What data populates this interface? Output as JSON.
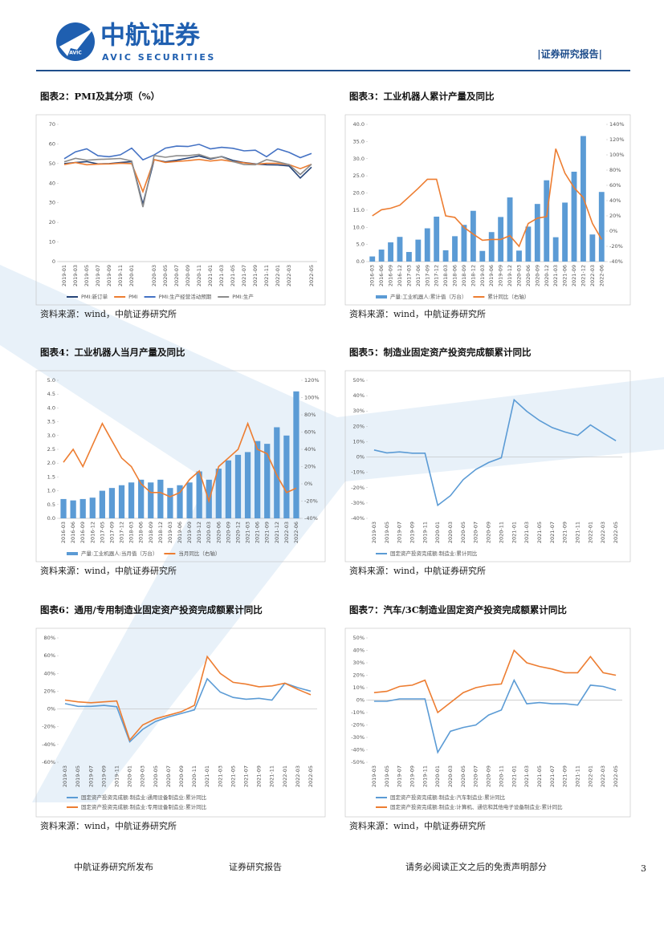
{
  "header": {
    "logo_mark": "AVIC",
    "brand": "中航证券",
    "brand_en": "AVIC SECURITIES",
    "report_type": "|证券研究报告|"
  },
  "chart_data": [
    {
      "type": "line",
      "title": "图表2：PMI及其分项（%）",
      "source": "资料来源：wind，中航证券研究所",
      "categories": [
        "2019-01",
        "2019-03",
        "2019-05",
        "2019-07",
        "2019-09",
        "2019-11",
        "2020-01",
        null,
        "2020-03",
        "2020-05",
        "2020-07",
        "2020-09",
        "2020-11",
        "2021-01",
        "2021-03",
        "2021-05",
        "2021-07",
        "2021-09",
        "2021-11",
        "2022-01",
        "2022-03",
        null,
        "2022-05"
      ],
      "ylim": [
        0,
        70
      ],
      "yticks": [
        0,
        10,
        20,
        30,
        40,
        50,
        60,
        70
      ],
      "series": [
        {
          "name": "PMI:新订单",
          "color": "#264478",
          "values": [
            50.0,
            50.5,
            51.0,
            49.8,
            50.0,
            50.5,
            51.0,
            29.3,
            52.0,
            50.9,
            51.7,
            52.8,
            53.9,
            52.3,
            53.6,
            51.6,
            50.5,
            49.8,
            49.4,
            49.3,
            48.8,
            42.6,
            48.2
          ]
        },
        {
          "name": "PMI",
          "color": "#ed7d31",
          "values": [
            49.5,
            50.5,
            49.4,
            49.7,
            49.8,
            50.2,
            50.0,
            35.7,
            52.0,
            50.6,
            51.1,
            51.5,
            52.1,
            51.3,
            51.9,
            51.0,
            50.4,
            49.6,
            50.1,
            50.1,
            49.5,
            47.4,
            49.6
          ]
        },
        {
          "name": "PMI:生产经营活动预期",
          "color": "#4472c4",
          "values": [
            52.5,
            56,
            57.5,
            54,
            53.5,
            54.5,
            57.9,
            51.9,
            54.4,
            57.9,
            58.9,
            58.7,
            59.8,
            57.5,
            58.3,
            57.8,
            56.5,
            56.8,
            53.5,
            57.5,
            55.7,
            53.0,
            55.2
          ]
        },
        {
          "name": "PMI:生产",
          "color": "#8c8c8c",
          "values": [
            50.9,
            52.7,
            51.7,
            52.1,
            52.3,
            52.6,
            51.3,
            27.8,
            54.1,
            53.2,
            54.0,
            54.0,
            54.7,
            52.7,
            53.5,
            51.0,
            49.5,
            49.4,
            52.0,
            50.9,
            49.5,
            44.4,
            49.7
          ]
        }
      ]
    },
    {
      "type": "combo",
      "title": "图表3：工业机器人累计产量及同比",
      "source": "资料来源：wind，中航证券研究所",
      "categories": [
        "2016-03",
        "2016-06",
        "2016-09",
        "2016-12",
        "2017-03",
        "2017-06",
        "2017-09",
        "2017-12",
        "2018-03",
        "2018-06",
        "2018-09",
        "2018-12",
        "2019-03",
        "2019-06",
        "2019-09",
        "2019-12",
        "2020-03",
        "2020-06",
        "2020-09",
        "2020-12",
        "2021-03",
        "2021-06",
        "2021-09",
        "2021-12",
        "2022-03",
        "2022-06"
      ],
      "ylim": [
        0,
        40
      ],
      "yticks": [
        {
          "value": 0,
          "label": "0.0"
        },
        {
          "value": 5,
          "label": "5.0"
        },
        {
          "value": 10,
          "label": "10.0"
        },
        {
          "value": 15,
          "label": "15.0"
        },
        {
          "value": 20,
          "label": "20.0"
        },
        {
          "value": 25,
          "label": "25.0"
        },
        {
          "value": 30,
          "label": "30.0"
        },
        {
          "value": 35,
          "label": "35.0"
        },
        {
          "value": 40,
          "label": "40.0"
        }
      ],
      "y2lim": [
        -40,
        140
      ],
      "y2ticks": [
        {
          "value": -40,
          "label": "-40%"
        },
        {
          "value": -20,
          "label": "-20%"
        },
        {
          "value": 0,
          "label": "0%"
        },
        {
          "value": 20,
          "label": "20%"
        },
        {
          "value": 40,
          "label": "40%"
        },
        {
          "value": 60,
          "label": "60%"
        },
        {
          "value": 80,
          "label": "80%"
        },
        {
          "value": 100,
          "label": "100%"
        },
        {
          "value": 120,
          "label": "120%"
        },
        {
          "value": 140,
          "label": "140%"
        }
      ],
      "series": [
        {
          "name": "产量:工业机器人:累计值（万台）",
          "type": "bar",
          "color": "#5b9bd5",
          "values": [
            1.5,
            3.5,
            5.6,
            7.2,
            2.8,
            6.4,
            9.7,
            13.1,
            3.3,
            7.4,
            10.7,
            14.8,
            3.1,
            8.6,
            13.0,
            18.7,
            3.2,
            10.2,
            16.8,
            23.7,
            7.1,
            17.2,
            26.2,
            36.6,
            7.9,
            20.3
          ]
        },
        {
          "name": "累计同比（右轴）",
          "type": "line",
          "axis": "y2",
          "color": "#ed7d31",
          "values": [
            20,
            28,
            30,
            34,
            45,
            56,
            68,
            68,
            20,
            18,
            5,
            -4,
            -12,
            -11,
            -11,
            -6,
            -20,
            10,
            17,
            19,
            108,
            76,
            57,
            44,
            10,
            -11
          ]
        }
      ]
    },
    {
      "type": "combo",
      "title": "图表4：工业机器人当月产量及同比",
      "source": "资料来源：wind，中航证券研究所",
      "categories": [
        "2016-03",
        "2016-06",
        "2016-09",
        "2016-12",
        "2017-05",
        "2017-09",
        "2017-12",
        "2018-03",
        "2018-06",
        "2018-09",
        "2018-12",
        "2019-03",
        "2019-06",
        "2019-09",
        "2019-12",
        "2020-03",
        "2020-06",
        "2020-09",
        "2020-12",
        "2021-03",
        "2021-06",
        "2021-09",
        "2021-12",
        "2022-03",
        "2022-06"
      ],
      "ylim": [
        0,
        5
      ],
      "yticks": [
        {
          "value": 0,
          "label": "0.0"
        },
        {
          "value": 0.5,
          "label": "0.5"
        },
        {
          "value": 1,
          "label": "1.0"
        },
        {
          "value": 1.5,
          "label": "1.5"
        },
        {
          "value": 2,
          "label": "2.0"
        },
        {
          "value": 2.5,
          "label": "2.5"
        },
        {
          "value": 3,
          "label": "3.0"
        },
        {
          "value": 3.5,
          "label": "3.5"
        },
        {
          "value": 4,
          "label": "4.0"
        },
        {
          "value": 4.5,
          "label": "4.5"
        },
        {
          "value": 5,
          "label": "5.0"
        }
      ],
      "y2lim": [
        -40,
        120
      ],
      "y2ticks": [
        {
          "value": -40,
          "label": "-40%"
        },
        {
          "value": -20,
          "label": "-20%"
        },
        {
          "value": 0,
          "label": "0%"
        },
        {
          "value": 20,
          "label": "20%"
        },
        {
          "value": 40,
          "label": "40%"
        },
        {
          "value": 60,
          "label": "60%"
        },
        {
          "value": 80,
          "label": "80%"
        },
        {
          "value": 100,
          "label": "100%"
        },
        {
          "value": 120,
          "label": "120%"
        }
      ],
      "series": [
        {
          "name": "产量:工业机器人:当月值（万台）",
          "type": "bar",
          "color": "#5b9bd5",
          "values": [
            0.7,
            0.65,
            0.7,
            0.75,
            1.0,
            1.1,
            1.2,
            1.3,
            1.4,
            1.3,
            1.4,
            1.1,
            1.2,
            1.3,
            1.7,
            1.4,
            1.8,
            2.1,
            2.3,
            2.4,
            2.8,
            2.7,
            3.3,
            3.0,
            4.6
          ]
        },
        {
          "name": "当月同比（右轴）",
          "type": "line",
          "axis": "y2",
          "color": "#ed7d31",
          "values": [
            25,
            40,
            20,
            45,
            70,
            50,
            30,
            20,
            0,
            -10,
            -10,
            -15,
            -10,
            5,
            15,
            -20,
            20,
            30,
            40,
            70,
            40,
            35,
            10,
            -10,
            -5
          ]
        }
      ]
    },
    {
      "type": "line",
      "title": "图表5：制造业固定资产投资完成额累计同比",
      "source": "资料来源：wind，中航证券研究所",
      "categories": [
        "2019-03",
        "2019-05",
        "2019-07",
        "2019-09",
        "2019-11",
        "2020-01",
        "2020-03",
        "2020-05",
        "2020-07",
        "2020-09",
        "2020-11",
        "2021-01",
        "2021-03",
        "2021-05",
        "2021-07",
        "2021-09",
        "2021-11",
        "2022-01",
        "2022-03",
        "2022-05"
      ],
      "ylim": [
        -40,
        50
      ],
      "yticks": [
        {
          "value": -40,
          "label": "-40%"
        },
        {
          "value": -30,
          "label": "-30%"
        },
        {
          "value": -20,
          "label": "-20%"
        },
        {
          "value": -10,
          "label": "-10%"
        },
        {
          "value": 0,
          "label": "0%"
        },
        {
          "value": 10,
          "label": "10%"
        },
        {
          "value": 20,
          "label": "20%"
        },
        {
          "value": 30,
          "label": "30%"
        },
        {
          "value": 40,
          "label": "40%"
        },
        {
          "value": 50,
          "label": "50%"
        }
      ],
      "series": [
        {
          "name": "固定资产投资完成额:制造业:累计同比",
          "color": "#5b9bd5",
          "values": [
            4.6,
            2.7,
            3.3,
            2.5,
            2.5,
            -31.5,
            -25.2,
            -14.8,
            -8.1,
            -3.6,
            -0.5,
            37.3,
            29.8,
            23.8,
            19.2,
            16.3,
            14.1,
            20.9,
            15.6,
            10.6
          ]
        }
      ]
    },
    {
      "type": "line",
      "title": "图表6：通用/专用制造业固定资产投资完成额累计同比",
      "source": "资料来源：wind，中航证券研究所",
      "categories": [
        "2019-03",
        "2019-05",
        "2019-07",
        "2019-09",
        "2019-11",
        "2020-01",
        "2020-03",
        "2020-05",
        "2020-07",
        "2020-09",
        "2020-11",
        "2021-01",
        "2021-03",
        "2021-05",
        "2021-07",
        "2021-09",
        "2021-11",
        "2022-01",
        "2022-03",
        "2022-05"
      ],
      "ylim": [
        -60,
        80
      ],
      "yticks": [
        {
          "value": -60,
          "label": "-60%"
        },
        {
          "value": -40,
          "label": "-40%"
        },
        {
          "value": -20,
          "label": "-20%"
        },
        {
          "value": 0,
          "label": "0%"
        },
        {
          "value": 20,
          "label": "20%"
        },
        {
          "value": 40,
          "label": "40%"
        },
        {
          "value": 60,
          "label": "60%"
        },
        {
          "value": 80,
          "label": "80%"
        }
      ],
      "series": [
        {
          "name": "固定资产投资完成额:制造业:通用设备制造业:累计同比",
          "color": "#5b9bd5",
          "values": [
            6,
            3,
            3,
            4,
            2.5,
            -37,
            -23,
            -14,
            -9,
            -5,
            -1,
            34,
            19,
            13,
            11,
            12,
            10,
            29,
            24,
            20
          ]
        },
        {
          "name": "固定资产投资完成额:制造业:专用设备制造业:累计同比",
          "color": "#ed7d31",
          "values": [
            10,
            8,
            7,
            8,
            9,
            -35,
            -18,
            -11,
            -7,
            -3,
            4,
            59,
            40,
            30,
            28,
            25,
            26,
            29,
            22,
            16
          ]
        }
      ]
    },
    {
      "type": "line",
      "title": "图表7：汽车/3C制造业固定资产投资完成额累计同比",
      "source": "资料来源：wind，中航证券研究所",
      "categories": [
        "2019-03",
        "2019-05",
        "2019-07",
        "2019-09",
        "2019-11",
        "2020-01",
        "2020-03",
        "2020-05",
        "2020-07",
        "2020-09",
        "2020-11",
        "2021-01",
        "2021-03",
        "2021-05",
        "2021-07",
        "2021-09",
        "2021-11",
        "2022-01",
        "2022-03",
        "2022-05"
      ],
      "ylim": [
        -50,
        50
      ],
      "yticks": [
        {
          "value": -50,
          "label": "-50%"
        },
        {
          "value": -40,
          "label": "-40%"
        },
        {
          "value": -30,
          "label": "-30%"
        },
        {
          "value": -20,
          "label": "-20%"
        },
        {
          "value": -10,
          "label": "-10%"
        },
        {
          "value": 0,
          "label": "0%"
        },
        {
          "value": 10,
          "label": "10%"
        },
        {
          "value": 20,
          "label": "20%"
        },
        {
          "value": 30,
          "label": "30%"
        },
        {
          "value": 40,
          "label": "40%"
        },
        {
          "value": 50,
          "label": "50%"
        }
      ],
      "series": [
        {
          "name": "固定资产投资完成额:制造业:汽车制造业:累计同比",
          "color": "#5b9bd5",
          "values": [
            -1,
            -1,
            1,
            1,
            1,
            -42,
            -25,
            -22,
            -20,
            -12,
            -8,
            16,
            -3,
            -2,
            -3,
            -3,
            -4,
            12,
            11,
            8
          ]
        },
        {
          "name": "固定资产投资完成额:制造业:计算机、通信和其他电子设备制造业:累计同比",
          "color": "#ed7d31",
          "values": [
            6,
            7,
            11,
            12,
            16,
            -10,
            -2,
            6,
            10,
            12,
            13,
            40,
            30,
            27,
            25,
            22,
            22,
            35,
            22,
            20
          ]
        }
      ]
    }
  ],
  "footer": {
    "publisher": "中航证券研究所发布",
    "report_type": "证券研究报告",
    "disclaimer": "请务必阅读正文之后的免责声明部分",
    "page": "3"
  }
}
